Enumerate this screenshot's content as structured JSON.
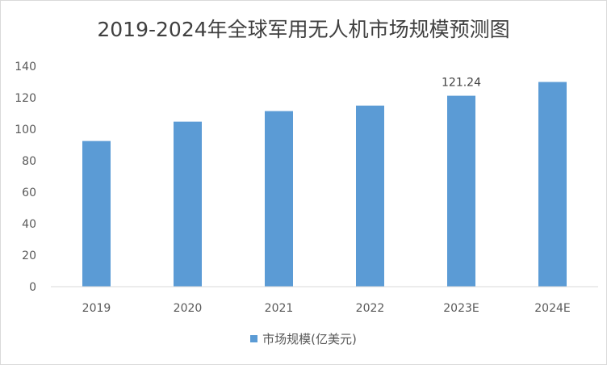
{
  "chart_data": {
    "type": "bar",
    "title": "2019-2024年全球军用无人机市场规模预测图",
    "categories": [
      "2019",
      "2020",
      "2021",
      "2022",
      "2023E",
      "2024E"
    ],
    "series": [
      {
        "name": "市场规模(亿美元)",
        "values": [
          92.5,
          104.8,
          111.5,
          115.0,
          121.24,
          130.0
        ]
      }
    ],
    "data_labels": [
      null,
      null,
      null,
      null,
      "121.24",
      null
    ],
    "ylim": [
      0,
      140
    ],
    "yticks": [
      "0",
      "20",
      "40",
      "60",
      "80",
      "100",
      "120",
      "140"
    ],
    "grid": false,
    "legend_position": "bottom",
    "bar_color": "#5b9bd5"
  }
}
